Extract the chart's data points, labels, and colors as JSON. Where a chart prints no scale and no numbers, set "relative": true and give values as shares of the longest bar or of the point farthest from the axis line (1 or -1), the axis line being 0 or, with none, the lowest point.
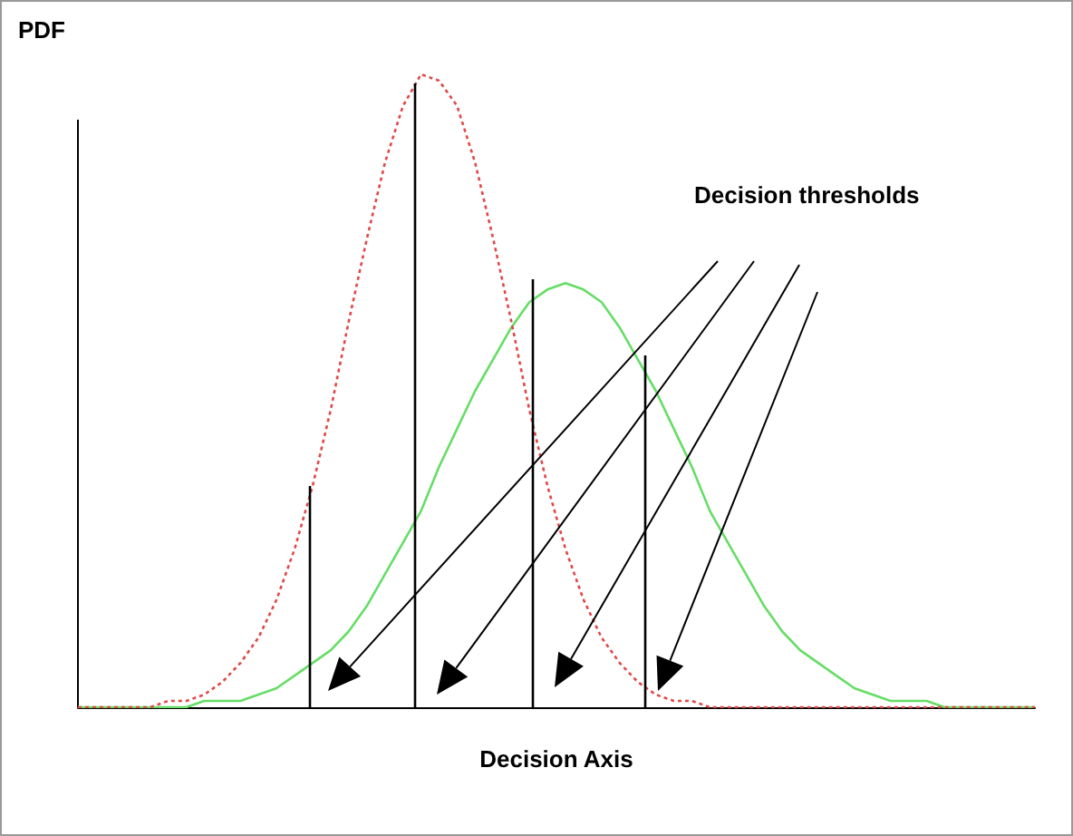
{
  "chart_data": {
    "type": "line",
    "relative": true,
    "ylabel": "PDF",
    "xlabel": "Decision Axis",
    "annotations": [
      "Decision thresholds"
    ],
    "grid": false,
    "marker": "none",
    "categories": [
      null,
      null,
      null,
      null,
      null,
      null,
      null,
      null,
      null,
      null,
      null,
      null,
      null,
      null,
      null,
      null,
      null,
      null,
      null,
      null,
      null,
      null,
      null,
      null,
      null,
      null,
      null,
      null,
      null,
      null,
      null,
      null,
      null,
      null,
      null,
      null,
      null,
      null,
      null,
      null,
      null,
      null,
      null,
      null,
      null,
      null,
      null,
      null,
      null,
      null,
      null,
      null,
      null,
      null
    ],
    "series": [
      {
        "color": "#e04848",
        "line_style": "dotted",
        "values": [
          0,
          0,
          0,
          0,
          0,
          0.01,
          0.01,
          0.02,
          0.04,
          0.07,
          0.11,
          0.17,
          0.25,
          0.35,
          0.47,
          0.61,
          0.74,
          0.86,
          0.95,
          1,
          0.99,
          0.95,
          0.86,
          0.74,
          0.61,
          0.47,
          0.35,
          0.25,
          0.17,
          0.11,
          0.07,
          0.04,
          0.02,
          0.01,
          0.01,
          0,
          0,
          0,
          0,
          0,
          0,
          0,
          0,
          0,
          0,
          0,
          0,
          0,
          0,
          0,
          0,
          0,
          0,
          0
        ]
      },
      {
        "color": "#66dd66",
        "line_style": "solid",
        "values": [
          0,
          0,
          0,
          0,
          0,
          0,
          0,
          0.01,
          0.01,
          0.01,
          0.02,
          0.03,
          0.05,
          0.07,
          0.09,
          0.12,
          0.16,
          0.21,
          0.26,
          0.31,
          0.38,
          0.44,
          0.5,
          0.55,
          0.6,
          0.64,
          0.66,
          0.67,
          0.66,
          0.64,
          0.6,
          0.55,
          0.5,
          0.44,
          0.38,
          0.31,
          0.26,
          0.21,
          0.16,
          0.12,
          0.09,
          0.07,
          0.05,
          0.03,
          0.02,
          0.01,
          0.01,
          0.01,
          0,
          0,
          0,
          0,
          0,
          0
        ]
      }
    ]
  }
}
